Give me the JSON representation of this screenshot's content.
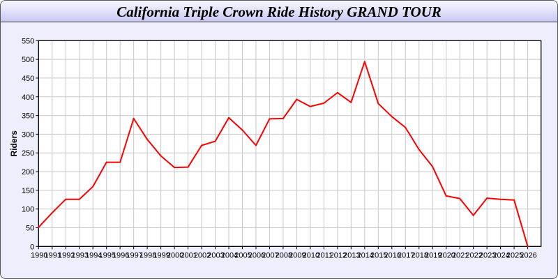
{
  "chart_data": {
    "type": "line",
    "title": "California Triple Crown Ride History GRAND TOUR",
    "xlabel": "",
    "ylabel": "Riders",
    "ylim": [
      0,
      550
    ],
    "yticks": [
      0,
      50,
      100,
      150,
      200,
      250,
      300,
      350,
      400,
      450,
      500,
      550
    ],
    "grid": true,
    "line_color": "#ff0000",
    "x": [
      1990,
      1991,
      1992,
      1993,
      1994,
      1995,
      1996,
      1997,
      1998,
      1999,
      2000,
      2001,
      2002,
      2003,
      2004,
      2005,
      2006,
      2007,
      2008,
      2009,
      2010,
      2011,
      2012,
      2013,
      2014,
      2015,
      2016,
      2017,
      2018,
      2019,
      2020,
      2021,
      2022,
      2023,
      2024,
      2025,
      2026
    ],
    "series": [
      {
        "values": [
          51,
          90,
          126,
          126,
          160,
          225,
          225,
          342,
          286,
          242,
          211,
          212,
          270,
          281,
          344,
          311,
          270,
          341,
          342,
          393,
          374,
          383,
          411,
          385,
          494,
          382,
          347,
          318,
          259,
          213,
          135,
          128,
          83,
          129,
          126,
          124,
          0
        ]
      }
    ]
  }
}
